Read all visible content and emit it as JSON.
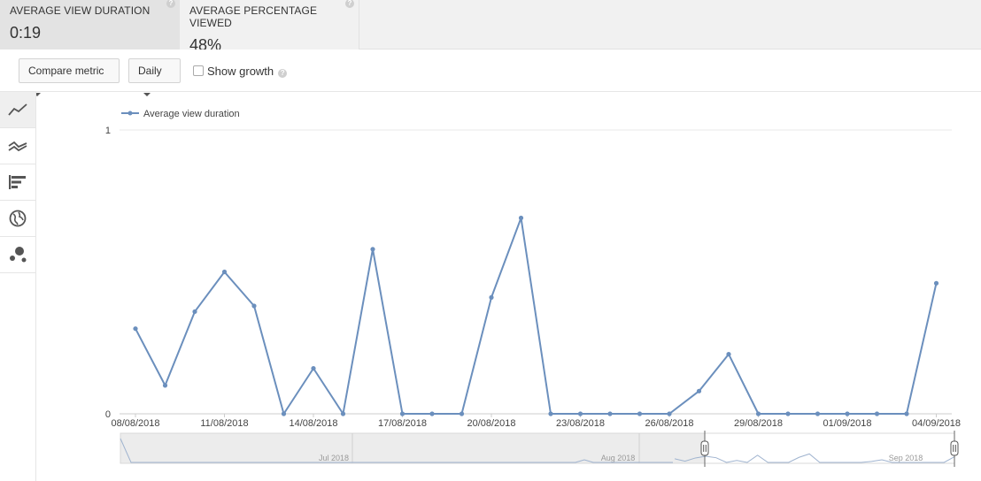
{
  "metrics": [
    {
      "label": "AVERAGE VIEW DURATION",
      "value": "0:19",
      "active": true
    },
    {
      "label": "AVERAGE PERCENTAGE VIEWED",
      "value": "48%",
      "active": false
    }
  ],
  "controls": {
    "compare_label": "Compare metric",
    "interval_label": "Daily",
    "growth_label": "Show growth"
  },
  "side_tools": [
    "line-chart-icon",
    "multi-line-chart-icon",
    "bar-chart-icon",
    "globe-icon",
    "bubble-chart-icon"
  ],
  "colors": {
    "series": "#6b8fbd",
    "grid": "#e8e8e8"
  },
  "chart_data": {
    "type": "line",
    "series": [
      {
        "name": "Average view duration",
        "values": [
          0.3,
          0.1,
          0.36,
          0.5,
          0.38,
          0.0,
          0.16,
          0.0,
          0.58,
          0.0,
          0.0,
          0.0,
          0.41,
          0.69,
          0.0,
          0.0,
          0.0,
          0.0,
          0.0,
          0.08,
          0.21,
          0.0,
          0.0,
          0.0,
          0.0,
          0.0,
          0.0,
          0.46
        ]
      }
    ],
    "x": [
      "08/08/2018",
      "09/08/2018",
      "10/08/2018",
      "11/08/2018",
      "12/08/2018",
      "13/08/2018",
      "14/08/2018",
      "15/08/2018",
      "16/08/2018",
      "17/08/2018",
      "18/08/2018",
      "19/08/2018",
      "20/08/2018",
      "21/08/2018",
      "22/08/2018",
      "23/08/2018",
      "24/08/2018",
      "25/08/2018",
      "26/08/2018",
      "27/08/2018",
      "28/08/2018",
      "29/08/2018",
      "30/08/2018",
      "31/08/2018",
      "01/09/2018",
      "02/09/2018",
      "03/09/2018",
      "04/09/2018"
    ],
    "x_tick_labels": [
      "08/08/2018",
      "11/08/2018",
      "14/08/2018",
      "17/08/2018",
      "20/08/2018",
      "23/08/2018",
      "26/08/2018",
      "29/08/2018",
      "01/09/2018",
      "04/09/2018"
    ],
    "y_ticks": [
      "0",
      "1"
    ],
    "ylim": [
      0,
      1
    ],
    "grid": true,
    "legend": "top-left",
    "navigator_labels": [
      "Jul 2018",
      "Aug 2018",
      "Sep 2018"
    ]
  }
}
